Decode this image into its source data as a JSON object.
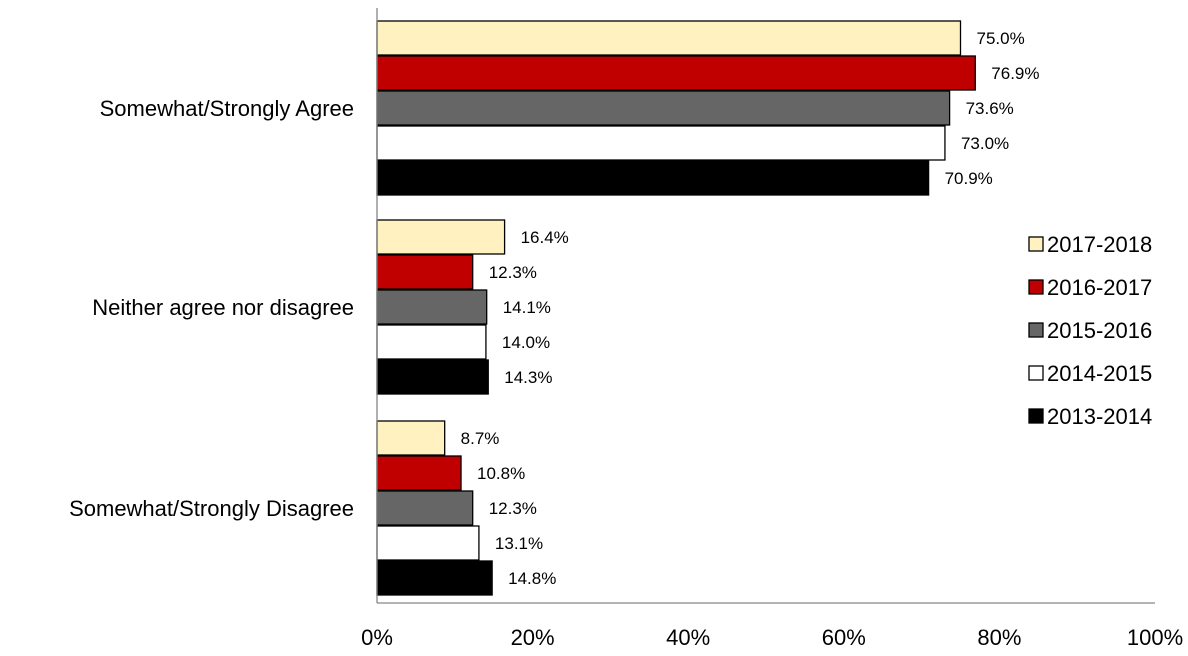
{
  "chart_data": {
    "type": "bar",
    "orientation": "horizontal",
    "title": "",
    "xlabel": "",
    "ylabel": "",
    "xlim": [
      0,
      100
    ],
    "x_ticks": [
      "0%",
      "20%",
      "40%",
      "60%",
      "80%",
      "100%"
    ],
    "categories": [
      "Somewhat/Strongly Agree",
      "Neither agree nor disagree",
      "Somewhat/Strongly Disagree"
    ],
    "series": [
      {
        "name": "2017-2018",
        "color": "#FFF2C0",
        "values": [
          75.0,
          16.4,
          8.7
        ],
        "labels": [
          "75.0%",
          "16.4%",
          "8.7%"
        ]
      },
      {
        "name": "2016-2017",
        "color": "#C00000",
        "values": [
          76.9,
          12.3,
          10.8
        ],
        "labels": [
          "76.9%",
          "12.3%",
          "10.8%"
        ]
      },
      {
        "name": "2015-2016",
        "color": "#666666",
        "values": [
          73.6,
          14.1,
          12.3
        ],
        "labels": [
          "73.6%",
          "14.1%",
          "12.3%"
        ]
      },
      {
        "name": "2014-2015",
        "color": "#FFFFFF",
        "values": [
          73.0,
          14.0,
          13.1
        ],
        "labels": [
          "73.0%",
          "14.0%",
          "13.1%"
        ]
      },
      {
        "name": "2013-2014",
        "color": "#000000",
        "values": [
          70.9,
          14.3,
          14.8
        ],
        "labels": [
          "70.9%",
          "14.3%",
          "14.8%"
        ]
      }
    ],
    "grid": false,
    "legend_position": "right"
  }
}
